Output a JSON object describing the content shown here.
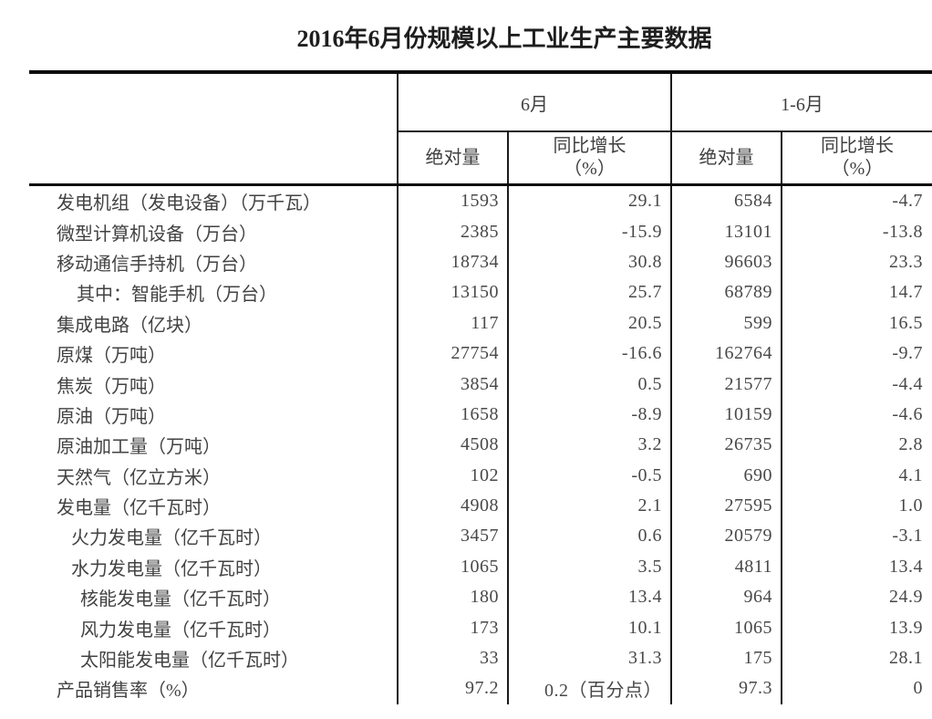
{
  "title": "2016年6月份规模以上工业生产主要数据",
  "table": {
    "group_headers": {
      "jun": "6月",
      "jan_jun": "1-6月"
    },
    "sub_headers": {
      "absolute": "绝对量",
      "yoy_line1": "同比增长",
      "yoy_line2": "（%）"
    },
    "rows": [
      {
        "label": "发电机组（发电设备）（万千瓦）",
        "indent": 0,
        "jun_abs": "1593",
        "jun_yoy": "29.1",
        "h1_abs": "6584",
        "h1_yoy": "-4.7"
      },
      {
        "label": "微型计算机设备（万台）",
        "indent": 0,
        "jun_abs": "2385",
        "jun_yoy": "-15.9",
        "h1_abs": "13101",
        "h1_yoy": "-13.8"
      },
      {
        "label": "移动通信手持机（万台）",
        "indent": 0,
        "jun_abs": "18734",
        "jun_yoy": "30.8",
        "h1_abs": "96603",
        "h1_yoy": "23.3"
      },
      {
        "label": "其中：智能手机（万台）",
        "indent": 22,
        "jun_abs": "13150",
        "jun_yoy": "25.7",
        "h1_abs": "68789",
        "h1_yoy": "14.7"
      },
      {
        "label": "集成电路（亿块）",
        "indent": 0,
        "jun_abs": "117",
        "jun_yoy": "20.5",
        "h1_abs": "599",
        "h1_yoy": "16.5"
      },
      {
        "label": "原煤（万吨）",
        "indent": 0,
        "jun_abs": "27754",
        "jun_yoy": "-16.6",
        "h1_abs": "162764",
        "h1_yoy": "-9.7"
      },
      {
        "label": "焦炭（万吨）",
        "indent": 0,
        "jun_abs": "3854",
        "jun_yoy": "0.5",
        "h1_abs": "21577",
        "h1_yoy": "-4.4"
      },
      {
        "label": "原油（万吨）",
        "indent": 0,
        "jun_abs": "1658",
        "jun_yoy": "-8.9",
        "h1_abs": "10159",
        "h1_yoy": "-4.6"
      },
      {
        "label": "原油加工量（万吨）",
        "indent": 0,
        "jun_abs": "4508",
        "jun_yoy": "3.2",
        "h1_abs": "26735",
        "h1_yoy": "2.8"
      },
      {
        "label": "天然气（亿立方米）",
        "indent": 0,
        "jun_abs": "102",
        "jun_yoy": "-0.5",
        "h1_abs": "690",
        "h1_yoy": "4.1"
      },
      {
        "label": "发电量（亿千瓦时）",
        "indent": 0,
        "jun_abs": "4908",
        "jun_yoy": "2.1",
        "h1_abs": "27595",
        "h1_yoy": "1.0"
      },
      {
        "label": "火力发电量（亿千瓦时）",
        "indent": 16,
        "jun_abs": "3457",
        "jun_yoy": "0.6",
        "h1_abs": "20579",
        "h1_yoy": "-3.1"
      },
      {
        "label": "水力发电量（亿千瓦时）",
        "indent": 16,
        "jun_abs": "1065",
        "jun_yoy": "3.5",
        "h1_abs": "4811",
        "h1_yoy": "13.4"
      },
      {
        "label": "核能发电量（亿千瓦时）",
        "indent": 26,
        "jun_abs": "180",
        "jun_yoy": "13.4",
        "h1_abs": "964",
        "h1_yoy": "24.9"
      },
      {
        "label": "风力发电量（亿千瓦时）",
        "indent": 26,
        "jun_abs": "173",
        "jun_yoy": "10.1",
        "h1_abs": "1065",
        "h1_yoy": "13.9"
      },
      {
        "label": "太阳能发电量（亿千瓦时）",
        "indent": 26,
        "jun_abs": "33",
        "jun_yoy": "31.3",
        "h1_abs": "175",
        "h1_yoy": "28.1"
      },
      {
        "label": "产品销售率（%）",
        "indent": 0,
        "jun_abs": "97.2",
        "jun_yoy": "0.2（百分点）",
        "h1_abs": "97.3",
        "h1_yoy": "0"
      }
    ]
  }
}
